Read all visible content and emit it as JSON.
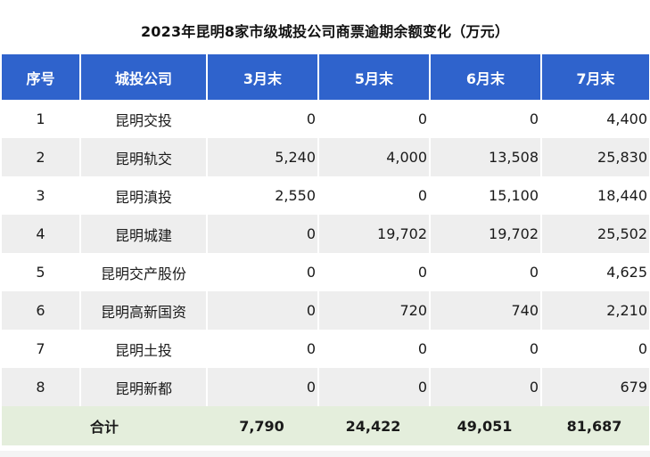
{
  "title": "2023年昆明8家市级城投公司商票逾期余额变化（万元）",
  "colors": {
    "header_bg": "#2f63cc",
    "header_text": "#ffffff",
    "row_alt_bg": "#eeeeee",
    "total_bg": "#e4eedc"
  },
  "table": {
    "headers": [
      "序号",
      "城投公司",
      "3月末",
      "5月末",
      "6月末",
      "7月末"
    ],
    "rows": [
      [
        "1",
        "昆明交投",
        "0",
        "0",
        "0",
        "4,400"
      ],
      [
        "2",
        "昆明轨交",
        "5,240",
        "4,000",
        "13,508",
        "25,830"
      ],
      [
        "3",
        "昆明滇投",
        "2,550",
        "0",
        "15,100",
        "18,440"
      ],
      [
        "4",
        "昆明城建",
        "0",
        "19,702",
        "19,702",
        "25,502"
      ],
      [
        "5",
        "昆明交产股份",
        "0",
        "0",
        "0",
        "4,625"
      ],
      [
        "6",
        "昆明高新国资",
        "0",
        "720",
        "740",
        "2,210"
      ],
      [
        "7",
        "昆明土投",
        "0",
        "0",
        "0",
        "0"
      ],
      [
        "8",
        "昆明新都",
        "0",
        "0",
        "0",
        "679"
      ]
    ],
    "total": {
      "label": "合计",
      "values": [
        "7,790",
        "24,422",
        "49,051",
        "81,687"
      ]
    }
  }
}
